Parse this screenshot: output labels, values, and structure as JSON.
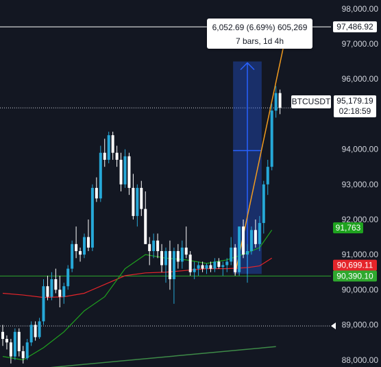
{
  "symbol": "BTCUSDT",
  "price_axis": {
    "ticks": [
      "98,000.00",
      "97,000.00",
      "96,000.00",
      "94,000.00",
      "93,000.00",
      "92,000.00",
      "91,000.00",
      "90,000.00",
      "89,000.00",
      "88,000.00"
    ]
  },
  "measure": {
    "line1": "6,052.69 (6.69%) 605,269",
    "line2": "7 bars, 1d 4h"
  },
  "current_price": {
    "value": "95,179.19",
    "countdown": "02:18:59"
  },
  "horizontal_line_label": "97,486.92",
  "price_labels": {
    "green_ma": "91,763",
    "red_ma": "90,699.11",
    "support_line": "90,390.10"
  },
  "colors": {
    "background": "#131722",
    "up": "#26a8d8",
    "down": "#ffffff",
    "green_ma": "#1fa31f",
    "red_ma": "#e5252a",
    "trend": "#f39c1f",
    "measure_fill": "#2962ff"
  },
  "chart_data": {
    "type": "candlestick",
    "ylim": [
      87800,
      98250
    ],
    "yticks": [
      98000,
      97000,
      96000,
      94000,
      93000,
      92000,
      91000,
      90000,
      89000,
      88000
    ],
    "candles": [
      [
        88800,
        89000,
        88400,
        88600
      ],
      [
        88600,
        88700,
        88300,
        88500
      ],
      [
        88500,
        88600,
        87900,
        88100
      ],
      [
        88100,
        88900,
        88000,
        88800
      ],
      [
        88800,
        88900,
        88100,
        88250
      ],
      [
        88250,
        88400,
        87900,
        88050
      ],
      [
        88050,
        88600,
        88000,
        88500
      ],
      [
        88500,
        89100,
        88400,
        89000
      ],
      [
        89000,
        89100,
        88550,
        88650
      ],
      [
        88650,
        89200,
        88600,
        89100
      ],
      [
        89100,
        90300,
        89000,
        90100
      ],
      [
        90100,
        90400,
        89700,
        89800
      ],
      [
        89800,
        90500,
        89700,
        90300
      ],
      [
        90300,
        90600,
        89900,
        90000
      ],
      [
        90000,
        90400,
        89500,
        89800
      ],
      [
        89800,
        90200,
        89600,
        90100
      ],
      [
        90100,
        90700,
        90000,
        90600
      ],
      [
        90600,
        91400,
        90500,
        91300
      ],
      [
        91300,
        91800,
        90900,
        91100
      ],
      [
        91100,
        91200,
        90800,
        91000
      ],
      [
        91000,
        91600,
        90900,
        91500
      ],
      [
        91500,
        92000,
        91100,
        91200
      ],
      [
        91200,
        93000,
        91100,
        92900
      ],
      [
        92900,
        93200,
        92500,
        92600
      ],
      [
        92600,
        94100,
        92500,
        93900
      ],
      [
        93900,
        94300,
        93500,
        93700
      ],
      [
        93700,
        94500,
        93600,
        94400
      ],
      [
        94400,
        94500,
        93700,
        93900
      ],
      [
        93900,
        94100,
        93500,
        93700
      ],
      [
        93700,
        93900,
        92800,
        93000
      ],
      [
        93000,
        94000,
        92900,
        93800
      ],
      [
        93800,
        93900,
        92700,
        92900
      ],
      [
        92900,
        93300,
        92000,
        92100
      ],
      [
        92100,
        93000,
        91800,
        92900
      ],
      [
        92900,
        93100,
        92100,
        92300
      ],
      [
        92300,
        92800,
        91300,
        91300
      ],
      [
        91300,
        91500,
        90700,
        91100
      ],
      [
        91100,
        91600,
        90900,
        91400
      ],
      [
        91400,
        91600,
        90900,
        91100
      ],
      [
        91100,
        91300,
        90500,
        90700
      ],
      [
        90700,
        91200,
        90200,
        91100
      ],
      [
        91100,
        91400,
        90000,
        90300
      ],
      [
        90300,
        91200,
        89600,
        91100
      ],
      [
        91100,
        91300,
        90600,
        90800
      ],
      [
        90800,
        91400,
        90600,
        91200
      ],
      [
        91200,
        91800,
        90900,
        91000
      ],
      [
        91000,
        91100,
        90400,
        90500
      ],
      [
        90500,
        90800,
        90300,
        90600
      ],
      [
        90600,
        90800,
        90400,
        90700
      ],
      [
        90700,
        90800,
        90500,
        90600
      ],
      [
        90600,
        90750,
        90450,
        90700
      ],
      [
        90700,
        90800,
        90500,
        90600
      ],
      [
        90600,
        90900,
        90500,
        90800
      ],
      [
        90800,
        90900,
        90600,
        90650
      ],
      [
        90650,
        90800,
        90400,
        90700
      ],
      [
        90700,
        90900,
        90500,
        90800
      ],
      [
        90800,
        91500,
        90700,
        91200
      ],
      [
        91200,
        91300,
        90400,
        90500
      ],
      [
        90500,
        91800,
        90400,
        91800
      ],
      [
        91800,
        92000,
        90900,
        91000
      ],
      [
        91000,
        91300,
        90200,
        91100
      ],
      [
        91100,
        91800,
        91000,
        91700
      ],
      [
        91700,
        92000,
        91200,
        91300
      ],
      [
        91300,
        92100,
        91100,
        91900
      ],
      [
        91900,
        93100,
        91600,
        93000
      ],
      [
        93000,
        93700,
        92700,
        93500
      ],
      [
        93500,
        95300,
        93400,
        95100
      ],
      [
        95100,
        95800,
        94900,
        95600
      ],
      [
        95600,
        95700,
        95000,
        95179
      ]
    ],
    "green_ma": [
      [
        0,
        88100
      ],
      [
        5,
        88000
      ],
      [
        10,
        88350
      ],
      [
        15,
        88800
      ],
      [
        20,
        89400
      ],
      [
        25,
        89800
      ],
      [
        30,
        90600
      ],
      [
        35,
        91000
      ],
      [
        40,
        90900
      ],
      [
        45,
        90850
      ],
      [
        50,
        90750
      ],
      [
        55,
        90850
      ],
      [
        60,
        91050
      ],
      [
        63,
        91200
      ],
      [
        66,
        91700
      ]
    ],
    "red_ma": [
      [
        0,
        89900
      ],
      [
        5,
        89850
      ],
      [
        10,
        89780
      ],
      [
        15,
        89800
      ],
      [
        20,
        89900
      ],
      [
        25,
        90150
      ],
      [
        30,
        90400
      ],
      [
        35,
        90480
      ],
      [
        40,
        90500
      ],
      [
        45,
        90550
      ],
      [
        50,
        90600
      ],
      [
        55,
        90600
      ],
      [
        60,
        90630
      ],
      [
        63,
        90680
      ],
      [
        66,
        90900
      ]
    ],
    "long_trendline": [
      [
        -1,
        87650
      ],
      [
        67,
        88380
      ]
    ],
    "trend_line": [
      [
        57,
        90450
      ],
      [
        69,
        97000
      ]
    ],
    "support_level": 90390.1,
    "resistance_level": 97486.92,
    "dotted_levels": [
      95179.19,
      88970
    ],
    "measure_range": {
      "from_bar": 57,
      "to_bar": 63,
      "low": 90450,
      "high": 96500
    }
  }
}
